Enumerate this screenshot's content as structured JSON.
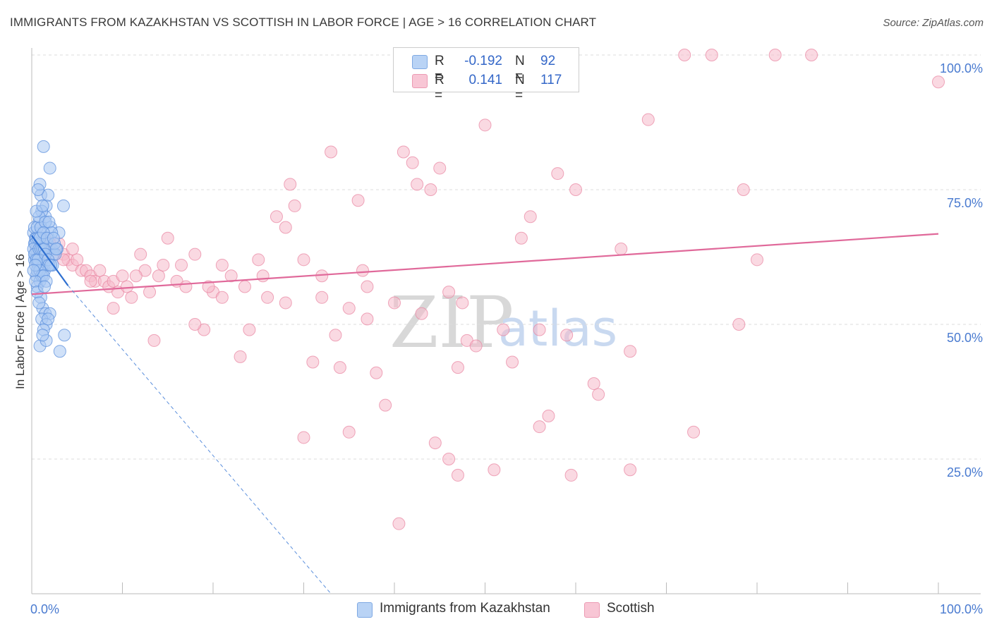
{
  "title": "IMMIGRANTS FROM KAZAKHSTAN VS SCOTTISH IN LABOR FORCE | AGE > 16 CORRELATION CHART",
  "source": "Source: ZipAtlas.com",
  "watermark": {
    "zip": "ZIP",
    "atlas": "atlas"
  },
  "legend": {
    "series1": {
      "r_label": "R =",
      "r_value": "-0.192",
      "n_label": "N =",
      "n_value": "92"
    },
    "series2": {
      "r_label": "R =",
      "r_value": "0.141",
      "n_label": "N =",
      "n_value": "117"
    }
  },
  "bottom_legend": {
    "series1": "Immigrants from Kazakhstan",
    "series2": "Scottish"
  },
  "colors": {
    "blue_fill": "#a9c8f2",
    "blue_stroke": "#5b8fdc",
    "blue_line": "#2e6fd0",
    "pink_fill": "#f5b9cb",
    "pink_stroke": "#e8839f",
    "pink_line": "#e0699a",
    "grid": "#dddddd",
    "tick_text": "#4a7bd0"
  },
  "chart_data": {
    "type": "scatter",
    "title": "IMMIGRANTS FROM KAZAKHSTAN VS SCOTTISH IN LABOR FORCE | AGE > 16 CORRELATION CHART",
    "xlabel": "",
    "ylabel": "In Labor Force | Age > 16",
    "xlim": [
      0,
      100
    ],
    "ylim": [
      0,
      100
    ],
    "x_tick_labels": [
      "0.0%",
      "100.0%"
    ],
    "y_ticks": [
      25,
      50,
      75,
      100
    ],
    "y_tick_labels": [
      "25.0%",
      "50.0%",
      "75.0%",
      "100.0%"
    ],
    "grid": "horizontal dashed",
    "legend_position": "top-center",
    "series": [
      {
        "name": "Immigrants from Kazakhstan",
        "color": "#a9c8f2",
        "trend": {
          "x": [
            0,
            4.0
          ],
          "y": [
            66.5,
            57.2
          ],
          "extended_x": [
            4.0,
            33.0
          ],
          "extended_y": [
            57.2,
            0
          ]
        },
        "points": [
          [
            0.2,
            67
          ],
          [
            0.3,
            65
          ],
          [
            0.4,
            66
          ],
          [
            0.5,
            64
          ],
          [
            0.6,
            63
          ],
          [
            0.3,
            62
          ],
          [
            0.7,
            61
          ],
          [
            0.8,
            60
          ],
          [
            0.5,
            59
          ],
          [
            0.9,
            58
          ],
          [
            1.0,
            67
          ],
          [
            1.1,
            65
          ],
          [
            1.2,
            63
          ],
          [
            0.6,
            62
          ],
          [
            1.3,
            61
          ],
          [
            1.4,
            60
          ],
          [
            0.8,
            69
          ],
          [
            1.5,
            70
          ],
          [
            1.6,
            72
          ],
          [
            1.0,
            74
          ],
          [
            0.9,
            76
          ],
          [
            1.8,
            74
          ],
          [
            1.3,
            83
          ],
          [
            2.0,
            79
          ],
          [
            0.7,
            75
          ],
          [
            1.1,
            71
          ],
          [
            2.1,
            68
          ],
          [
            1.4,
            66
          ],
          [
            1.7,
            65
          ],
          [
            2.2,
            64
          ],
          [
            2.4,
            63
          ],
          [
            0.4,
            63
          ],
          [
            0.6,
            57
          ],
          [
            1.0,
            55
          ],
          [
            1.2,
            53
          ],
          [
            1.5,
            52
          ],
          [
            2.0,
            52
          ],
          [
            1.1,
            51
          ],
          [
            1.6,
            50
          ],
          [
            1.3,
            49
          ],
          [
            2.8,
            64
          ],
          [
            3.0,
            67
          ],
          [
            2.6,
            63
          ],
          [
            0.9,
            46
          ],
          [
            1.6,
            47
          ],
          [
            3.5,
            72
          ],
          [
            1.2,
            48
          ],
          [
            3.6,
            48
          ],
          [
            3.1,
            45
          ],
          [
            2.3,
            61
          ],
          [
            0.5,
            66
          ],
          [
            0.4,
            65
          ],
          [
            0.2,
            64
          ],
          [
            0.3,
            63
          ],
          [
            0.5,
            62
          ],
          [
            0.7,
            62
          ],
          [
            0.8,
            64
          ],
          [
            1.0,
            64
          ],
          [
            1.2,
            64
          ],
          [
            1.4,
            64
          ],
          [
            1.5,
            63
          ],
          [
            1.8,
            62
          ],
          [
            1.9,
            61
          ],
          [
            2.1,
            61
          ],
          [
            0.6,
            60
          ],
          [
            0.9,
            60
          ],
          [
            1.1,
            59
          ],
          [
            1.3,
            59
          ],
          [
            0.4,
            58
          ],
          [
            1.6,
            58
          ],
          [
            0.3,
            68
          ],
          [
            0.6,
            68
          ],
          [
            1.0,
            68
          ],
          [
            0.8,
            70
          ],
          [
            1.5,
            69
          ],
          [
            1.9,
            69
          ],
          [
            2.2,
            67
          ],
          [
            0.5,
            71
          ],
          [
            1.2,
            72
          ],
          [
            0.7,
            66
          ],
          [
            0.9,
            66
          ],
          [
            1.3,
            67
          ],
          [
            1.7,
            66
          ],
          [
            2.5,
            65
          ],
          [
            0.4,
            61
          ],
          [
            0.2,
            60
          ],
          [
            0.6,
            56
          ],
          [
            1.4,
            57
          ],
          [
            1.8,
            51
          ],
          [
            0.8,
            54
          ],
          [
            2.4,
            66
          ],
          [
            2.7,
            64
          ]
        ]
      },
      {
        "name": "Scottish",
        "color": "#f5b9cb",
        "trend": {
          "x": [
            0,
            100
          ],
          "y": [
            55.6,
            66.8
          ]
        },
        "points": [
          [
            0.5,
            64
          ],
          [
            1.0,
            63
          ],
          [
            1.5,
            66
          ],
          [
            2.0,
            64
          ],
          [
            2.5,
            63
          ],
          [
            3.0,
            65
          ],
          [
            3.5,
            63
          ],
          [
            4.0,
            62
          ],
          [
            4.5,
            61
          ],
          [
            5.0,
            62
          ],
          [
            5.5,
            60
          ],
          [
            6.0,
            60
          ],
          [
            6.5,
            59
          ],
          [
            7.0,
            58
          ],
          [
            7.5,
            60
          ],
          [
            8.0,
            58
          ],
          [
            8.5,
            57
          ],
          [
            9.0,
            58
          ],
          [
            9.5,
            56
          ],
          [
            10.0,
            59
          ],
          [
            10.5,
            57
          ],
          [
            11.0,
            55
          ],
          [
            12.0,
            63
          ],
          [
            12.5,
            60
          ],
          [
            13.0,
            56
          ],
          [
            14.0,
            59
          ],
          [
            14.5,
            61
          ],
          [
            15.0,
            66
          ],
          [
            16.0,
            58
          ],
          [
            17.0,
            57
          ],
          [
            18.0,
            63
          ],
          [
            19.0,
            49
          ],
          [
            20.0,
            56
          ],
          [
            21.0,
            55
          ],
          [
            22.0,
            59
          ],
          [
            23.0,
            44
          ],
          [
            24.0,
            49
          ],
          [
            25.0,
            62
          ],
          [
            26.0,
            55
          ],
          [
            27.0,
            70
          ],
          [
            28.0,
            68
          ],
          [
            28.5,
            76
          ],
          [
            29.0,
            72
          ],
          [
            30.0,
            62
          ],
          [
            31.0,
            43
          ],
          [
            32.0,
            59
          ],
          [
            33.0,
            82
          ],
          [
            34.0,
            42
          ],
          [
            35.0,
            53
          ],
          [
            36.0,
            73
          ],
          [
            37.0,
            51
          ],
          [
            38.0,
            41
          ],
          [
            39.0,
            35
          ],
          [
            40.0,
            54
          ],
          [
            41.0,
            82
          ],
          [
            42.0,
            80
          ],
          [
            42.5,
            76
          ],
          [
            43.0,
            52
          ],
          [
            44.0,
            75
          ],
          [
            45.0,
            79
          ],
          [
            46.0,
            25
          ],
          [
            47.0,
            42
          ],
          [
            47.5,
            54
          ],
          [
            48.0,
            47
          ],
          [
            49.0,
            46
          ],
          [
            50.0,
            87
          ],
          [
            51.0,
            23
          ],
          [
            52.0,
            49
          ],
          [
            53.0,
            43
          ],
          [
            54.0,
            66
          ],
          [
            55.0,
            70
          ],
          [
            56.0,
            49
          ],
          [
            57.0,
            33
          ],
          [
            58.0,
            78
          ],
          [
            59.0,
            48
          ],
          [
            60.0,
            75
          ],
          [
            62.0,
            39
          ],
          [
            62.5,
            37
          ],
          [
            65.0,
            64
          ],
          [
            66.0,
            23
          ],
          [
            68.0,
            88
          ],
          [
            72.0,
            100
          ],
          [
            75.0,
            100
          ],
          [
            78.0,
            50
          ],
          [
            78.5,
            75
          ],
          [
            80.0,
            62
          ],
          [
            82.0,
            100
          ],
          [
            86.0,
            100
          ],
          [
            100.0,
            95
          ],
          [
            36.5,
            60
          ],
          [
            46.0,
            56
          ],
          [
            9.0,
            53
          ],
          [
            13.5,
            47
          ],
          [
            18.0,
            50
          ],
          [
            21.0,
            61
          ],
          [
            23.5,
            57
          ],
          [
            25.5,
            59
          ],
          [
            28.0,
            54
          ],
          [
            30.0,
            29
          ],
          [
            32.0,
            55
          ],
          [
            33.5,
            48
          ],
          [
            35.0,
            30
          ],
          [
            37.0,
            57
          ],
          [
            40.5,
            13
          ],
          [
            44.5,
            28
          ],
          [
            47.0,
            22
          ],
          [
            56.0,
            31
          ],
          [
            59.5,
            22
          ],
          [
            66.0,
            45
          ],
          [
            73.0,
            30
          ],
          [
            2.0,
            65
          ],
          [
            3.5,
            62
          ],
          [
            4.5,
            64
          ],
          [
            6.5,
            58
          ],
          [
            11.5,
            59
          ],
          [
            16.5,
            61
          ],
          [
            19.5,
            57
          ]
        ]
      }
    ]
  }
}
